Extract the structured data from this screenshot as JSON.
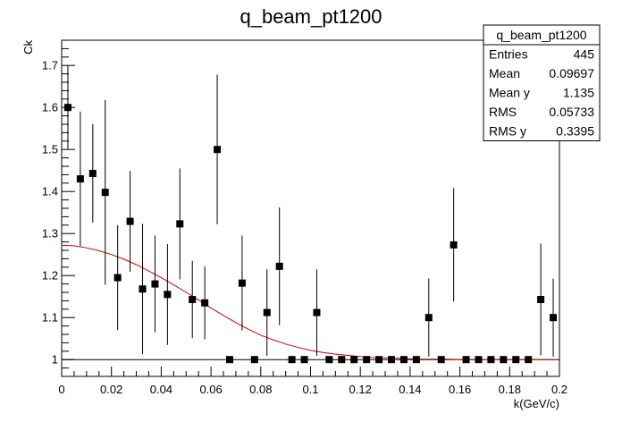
{
  "chart_data": {
    "type": "scatter",
    "title": "q_beam_pt1200",
    "xlabel": "k(GeV/c)",
    "ylabel": "Ck",
    "xlim": [
      0,
      0.2
    ],
    "ylim": [
      0.96,
      1.76
    ],
    "grid": false,
    "x_ticks": [
      0,
      0.02,
      0.04,
      0.06,
      0.08,
      0.1,
      0.12,
      0.14,
      0.16,
      0.18,
      0.2
    ],
    "x_tick_labels": [
      "0",
      "0.02",
      "0.04",
      "0.06",
      "0.08",
      "0.1",
      "0.12",
      "0.14",
      "0.16",
      "0.18",
      "0.2"
    ],
    "y_ticks": [
      1,
      1.1,
      1.2,
      1.3,
      1.4,
      1.5,
      1.6,
      1.7
    ],
    "y_tick_labels": [
      "1",
      "1.1",
      "1.2",
      "1.3",
      "1.4",
      "1.5",
      "1.6",
      "1.7"
    ],
    "reference_line_y": 1,
    "points": [
      {
        "x": 0.0025,
        "y": 1.6,
        "err": 0.1
      },
      {
        "x": 0.0075,
        "y": 1.43,
        "err": 0.16
      },
      {
        "x": 0.0125,
        "y": 1.443,
        "err": 0.117
      },
      {
        "x": 0.0175,
        "y": 1.398,
        "err": 0.22
      },
      {
        "x": 0.0225,
        "y": 1.195,
        "err": 0.125
      },
      {
        "x": 0.0275,
        "y": 1.329,
        "err": 0.12
      },
      {
        "x": 0.0325,
        "y": 1.168,
        "err": 0.155
      },
      {
        "x": 0.0375,
        "y": 1.18,
        "err": 0.115
      },
      {
        "x": 0.0425,
        "y": 1.155,
        "err": 0.12
      },
      {
        "x": 0.0475,
        "y": 1.323,
        "err": 0.132
      },
      {
        "x": 0.0525,
        "y": 1.143,
        "err": 0.092
      },
      {
        "x": 0.0575,
        "y": 1.135,
        "err": 0.087
      },
      {
        "x": 0.0625,
        "y": 1.5,
        "err": 0.178
      },
      {
        "x": 0.0675,
        "y": 1.0,
        "err": 0
      },
      {
        "x": 0.0725,
        "y": 1.182,
        "err": 0.113
      },
      {
        "x": 0.0775,
        "y": 1.0,
        "err": 0
      },
      {
        "x": 0.0825,
        "y": 1.112,
        "err": 0.103
      },
      {
        "x": 0.0875,
        "y": 1.222,
        "err": 0.14
      },
      {
        "x": 0.0925,
        "y": 1.0,
        "err": 0
      },
      {
        "x": 0.0975,
        "y": 1.0,
        "err": 0
      },
      {
        "x": 0.1025,
        "y": 1.112,
        "err": 0.103
      },
      {
        "x": 0.1075,
        "y": 1.0,
        "err": 0
      },
      {
        "x": 0.1125,
        "y": 1.0,
        "err": 0
      },
      {
        "x": 0.1175,
        "y": 1.0,
        "err": 0
      },
      {
        "x": 0.1225,
        "y": 1.0,
        "err": 0
      },
      {
        "x": 0.1275,
        "y": 1.0,
        "err": 0
      },
      {
        "x": 0.1325,
        "y": 1.0,
        "err": 0
      },
      {
        "x": 0.1375,
        "y": 1.0,
        "err": 0
      },
      {
        "x": 0.1425,
        "y": 1.0,
        "err": 0
      },
      {
        "x": 0.1475,
        "y": 1.1,
        "err": 0.093
      },
      {
        "x": 0.1525,
        "y": 1.0,
        "err": 0
      },
      {
        "x": 0.1575,
        "y": 1.273,
        "err": 0.135
      },
      {
        "x": 0.1625,
        "y": 1.0,
        "err": 0
      },
      {
        "x": 0.1675,
        "y": 1.0,
        "err": 0
      },
      {
        "x": 0.1725,
        "y": 1.0,
        "err": 0
      },
      {
        "x": 0.1775,
        "y": 1.0,
        "err": 0
      },
      {
        "x": 0.1825,
        "y": 1.0,
        "err": 0
      },
      {
        "x": 0.1875,
        "y": 1.0,
        "err": 0
      },
      {
        "x": 0.1925,
        "y": 1.143,
        "err": 0.133
      },
      {
        "x": 0.1975,
        "y": 1.1,
        "err": 0.093
      }
    ],
    "fit_curve": {
      "color": "#cc0000",
      "x": [
        0,
        0.005,
        0.01,
        0.015,
        0.02,
        0.025,
        0.03,
        0.035,
        0.04,
        0.045,
        0.05,
        0.055,
        0.06,
        0.065,
        0.07,
        0.075,
        0.08,
        0.085,
        0.09,
        0.095,
        0.1,
        0.105,
        0.11,
        0.115,
        0.12,
        0.125,
        0.13,
        0.135,
        0.14,
        0.145,
        0.15,
        0.155,
        0.16,
        0.165,
        0.17,
        0.175,
        0.18,
        0.185,
        0.19,
        0.195,
        0.198
      ],
      "y": [
        1.272,
        1.271,
        1.266,
        1.259,
        1.25,
        1.239,
        1.226,
        1.211,
        1.195,
        1.178,
        1.16,
        1.142,
        1.123,
        1.105,
        1.088,
        1.072,
        1.058,
        1.047,
        1.037,
        1.029,
        1.022,
        1.017,
        1.013,
        1.01,
        1.007,
        1.005,
        1.004,
        1.003,
        1.002,
        1.001,
        1.001,
        1.001,
        1.0,
        1.0,
        1.0,
        1.0,
        1.0,
        1.0,
        1.0,
        1.0,
        1.0
      ]
    },
    "marker_color": "#000000",
    "legend_placement": "top-right"
  },
  "stats": {
    "title": "q_beam_pt1200",
    "rows": [
      {
        "label": "Entries",
        "value": "445"
      },
      {
        "label": "Mean",
        "value": "0.09697"
      },
      {
        "label": "Mean y",
        "value": "1.135"
      },
      {
        "label": "RMS",
        "value": "0.05733"
      },
      {
        "label": "RMS y",
        "value": "0.3395"
      }
    ]
  }
}
